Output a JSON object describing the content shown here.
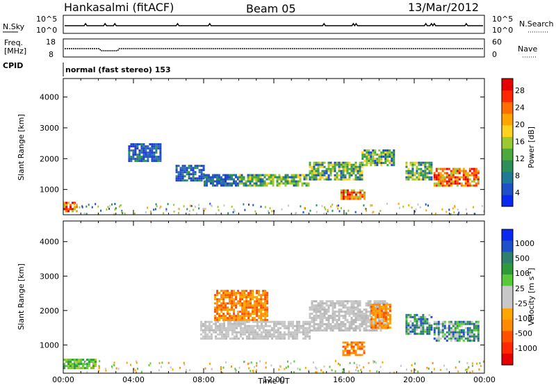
{
  "header": {
    "station": "Hankasalmi (fitACF)",
    "beam": "Beam 05",
    "date": "13/Mar/2012"
  },
  "panels": {
    "nsky": {
      "left_label": "N.Sky",
      "right_label": "N.Search",
      "left_ticks": [
        "10^5",
        "10^0"
      ],
      "right_ticks": [
        "10^5",
        "10^0"
      ]
    },
    "freq": {
      "label_line1": "Freq.",
      "label_line2": "[MHz]",
      "left_ticks": [
        "18",
        "8"
      ],
      "right_ticks": [
        "60",
        "0"
      ],
      "right_label": "Nave"
    },
    "cpid": {
      "label": "CPID",
      "text": "normal (fast stereo) 153"
    }
  },
  "chart_data": [
    {
      "type": "heatmap",
      "name": "power",
      "ylabel": "Slant Range [km]",
      "xlabel": "",
      "yticks": [
        "1000",
        "2000",
        "3000",
        "4000"
      ],
      "xlim": [
        0,
        24
      ],
      "ylim": [
        180,
        4600
      ],
      "colorbar": {
        "label": "Power [dB]",
        "ticks": [
          "4",
          "8",
          "12",
          "16",
          "20",
          "24",
          "28"
        ],
        "colors": [
          "#0a28f0",
          "#1e50c8",
          "#1f7a96",
          "#2e8f5a",
          "#4da83d",
          "#9cc832",
          "#ffd21e",
          "#ffa500",
          "#ff6e00",
          "#ff2800",
          "#e60000"
        ]
      },
      "regions": [
        {
          "t": [
            0.0,
            0.8
          ],
          "r": [
            300,
            600
          ],
          "level": "high"
        },
        {
          "t": [
            3.7,
            5.6
          ],
          "r": [
            1900,
            2500
          ],
          "level": "low"
        },
        {
          "t": [
            6.4,
            8.0
          ],
          "r": [
            1300,
            1800
          ],
          "level": "low"
        },
        {
          "t": [
            8.0,
            10.0
          ],
          "r": [
            1100,
            1500
          ],
          "level": "low"
        },
        {
          "t": [
            10.0,
            14.0
          ],
          "r": [
            1100,
            1500
          ],
          "level": "mid"
        },
        {
          "t": [
            14.0,
            17.0
          ],
          "r": [
            1300,
            1900
          ],
          "level": "mid"
        },
        {
          "t": [
            17.0,
            18.8
          ],
          "r": [
            1800,
            2300
          ],
          "level": "mid"
        },
        {
          "t": [
            15.8,
            17.2
          ],
          "r": [
            700,
            1000
          ],
          "level": "high"
        },
        {
          "t": [
            19.5,
            21.0
          ],
          "r": [
            1300,
            1900
          ],
          "level": "mid"
        },
        {
          "t": [
            21.1,
            23.6
          ],
          "r": [
            1100,
            1700
          ],
          "level": "high"
        }
      ]
    },
    {
      "type": "heatmap",
      "name": "velocity",
      "ylabel": "Slant Range [km]",
      "xlabel": "Time UT",
      "yticks": [
        "1000",
        "2000",
        "3000",
        "4000"
      ],
      "xticks": [
        "00:00",
        "04:00",
        "08:00",
        "12:00",
        "16:00",
        "20:00",
        "00:00"
      ],
      "xlim": [
        0,
        24
      ],
      "ylim": [
        180,
        4600
      ],
      "colorbar": {
        "label": "Velocity [m s",
        "label_sup": "-1",
        "ticks": [
          "1000",
          "500",
          "100",
          "25",
          "-25",
          "-100",
          "-500",
          "-1000"
        ],
        "colors": [
          "#0a28f0",
          "#1e50c8",
          "#2e7f6e",
          "#2e9a3a",
          "#59c83a",
          "#c8c8c8",
          "#c8c8c8",
          "#ffa500",
          "#ff8c00",
          "#ff5000",
          "#ff2800",
          "#e60000"
        ]
      },
      "regions": [
        {
          "t": [
            0.0,
            1.8
          ],
          "r": [
            300,
            600
          ],
          "level": "green"
        },
        {
          "t": [
            8.6,
            11.6
          ],
          "r": [
            1700,
            2600
          ],
          "level": "orange"
        },
        {
          "t": [
            7.8,
            14.0
          ],
          "r": [
            1200,
            1700
          ],
          "level": "grey"
        },
        {
          "t": [
            14.0,
            18.5
          ],
          "r": [
            1400,
            2300
          ],
          "level": "grey"
        },
        {
          "t": [
            15.9,
            17.2
          ],
          "r": [
            700,
            1100
          ],
          "level": "orange"
        },
        {
          "t": [
            17.5,
            18.6
          ],
          "r": [
            1500,
            2200
          ],
          "level": "orange"
        },
        {
          "t": [
            19.5,
            21.0
          ],
          "r": [
            1300,
            1900
          ],
          "level": "bluegreen"
        },
        {
          "t": [
            21.1,
            23.6
          ],
          "r": [
            1100,
            1700
          ],
          "level": "bluegreen"
        }
      ]
    }
  ]
}
